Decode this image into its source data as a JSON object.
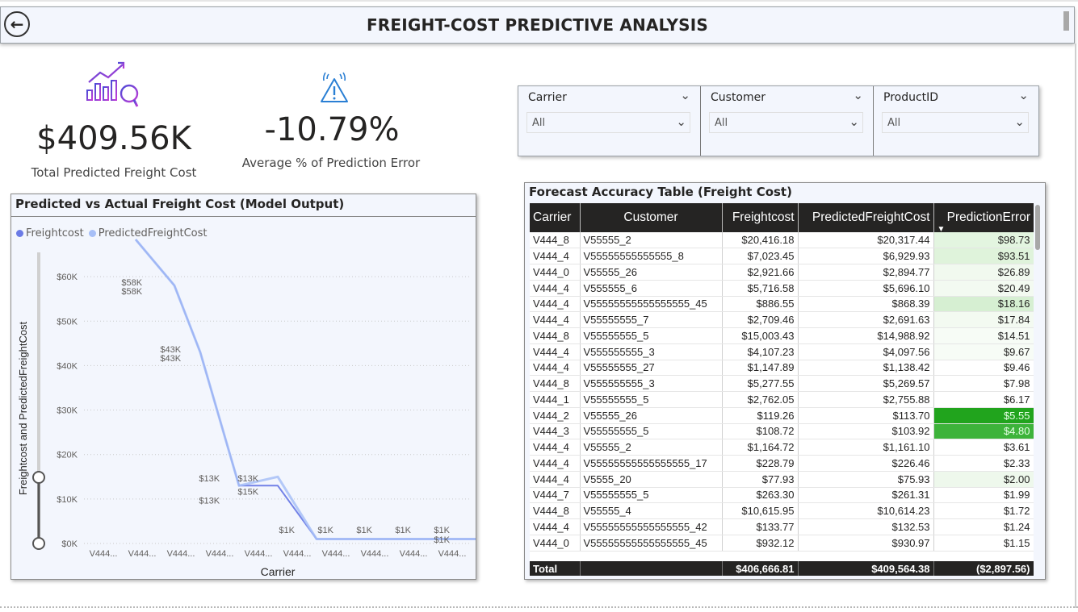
{
  "header": {
    "title": "FREIGHT-COST PREDICTIVE ANALYSIS",
    "back_icon": "arrow-left-circle-icon"
  },
  "kpis": [
    {
      "value": "$409.56K",
      "label": "Total Predicted Freight Cost",
      "icon": "analytics-growth-icon"
    },
    {
      "value": "-10.79%",
      "label": "Average % of Prediction Error",
      "icon": "warning-alert-icon"
    }
  ],
  "slicers": [
    {
      "title": "Carrier",
      "value": "All"
    },
    {
      "title": "Customer",
      "value": "All"
    },
    {
      "title": "ProductID",
      "value": "All"
    }
  ],
  "chart_data": {
    "type": "line",
    "title": "Predicted vs Actual Freight Cost (Model Output)",
    "xlabel": "Carrier",
    "ylabel": "Freightcost and PredictedFreightCost",
    "categories": [
      "V444...",
      "V444...",
      "V444...",
      "V444...",
      "V444...",
      "V444...",
      "V444...",
      "V444...",
      "V444...",
      "V444..."
    ],
    "y_ticks": [
      "$0K",
      "$10K",
      "$20K",
      "$30K",
      "$40K",
      "$50K",
      "$60K"
    ],
    "ylim": [
      0,
      68000
    ],
    "series": [
      {
        "name": "Freightcost",
        "color": "#6b7be6",
        "values": [
          58000,
          43000,
          13000,
          13000,
          1000,
          1000,
          1000,
          1000,
          1000,
          1000
        ]
      },
      {
        "name": "PredictedFreightCost",
        "color": "#a7bff7",
        "values": [
          58000,
          43000,
          13000,
          15000,
          1000,
          1000,
          1000,
          1000,
          1000,
          1000
        ]
      }
    ],
    "data_labels": [
      {
        "text": "$58K",
        "x": 1.4,
        "y": 58000
      },
      {
        "text": "$58K",
        "x": 1.4,
        "y": 56000
      },
      {
        "text": "$43K",
        "x": 2.4,
        "y": 43000
      },
      {
        "text": "$43K",
        "x": 2.4,
        "y": 41000
      },
      {
        "text": "$13K",
        "x": 3.4,
        "y": 14000
      },
      {
        "text": "$13K",
        "x": 3.4,
        "y": 9000
      },
      {
        "text": "$13K",
        "x": 4.4,
        "y": 14000
      },
      {
        "text": "$15K",
        "x": 4.4,
        "y": 11000
      },
      {
        "text": "$1K",
        "x": 5.4,
        "y": 2400
      },
      {
        "text": "$1K",
        "x": 6.4,
        "y": 2400
      },
      {
        "text": "$1K",
        "x": 7.4,
        "y": 2400
      },
      {
        "text": "$1K",
        "x": 8.4,
        "y": 2400
      },
      {
        "text": "$1K",
        "x": 9.4,
        "y": 2400
      },
      {
        "text": "$1K",
        "x": 9.4,
        "y": 200
      }
    ],
    "legend_position": "top-left",
    "grid": true
  },
  "table": {
    "title": "Forecast Accuracy Table (Freight Cost)",
    "columns": [
      "Carrier",
      "Customer",
      "Freightcost",
      "PredictedFreightCost",
      "PredictionError"
    ],
    "rows": [
      [
        "V444_8",
        "V55555_2",
        "$20,416.18",
        "$20,317.44",
        "$98.73"
      ],
      [
        "V444_4",
        "V55555555555555_8",
        "$7,023.45",
        "$6,929.93",
        "$93.51"
      ],
      [
        "V444_0",
        "V55555_26",
        "$2,921.66",
        "$2,894.77",
        "$26.89"
      ],
      [
        "V444_4",
        "V555555_6",
        "$5,716.58",
        "$5,696.10",
        "$20.49"
      ],
      [
        "V444_4",
        "V55555555555555555_45",
        "$886.55",
        "$868.39",
        "$18.16"
      ],
      [
        "V444_4",
        "V55555555_7",
        "$2,709.46",
        "$2,691.63",
        "$17.84"
      ],
      [
        "V444_8",
        "V55555555_5",
        "$15,003.43",
        "$14,988.92",
        "$14.51"
      ],
      [
        "V444_4",
        "V555555555_3",
        "$4,107.23",
        "$4,097.56",
        "$9.67"
      ],
      [
        "V444_4",
        "V55555555_27",
        "$1,147.89",
        "$1,138.42",
        "$9.46"
      ],
      [
        "V444_8",
        "V555555555_3",
        "$5,277.55",
        "$5,269.57",
        "$7.98"
      ],
      [
        "V444_1",
        "V55555555_5",
        "$2,762.05",
        "$2,755.88",
        "$6.17"
      ],
      [
        "V444_2",
        "V55555_26",
        "$119.26",
        "$113.70",
        "$5.55"
      ],
      [
        "V444_3",
        "V55555555_5",
        "$108.72",
        "$103.92",
        "$4.80"
      ],
      [
        "V444_4",
        "V55555_2",
        "$1,164.72",
        "$1,161.10",
        "$3.61"
      ],
      [
        "V444_4",
        "V55555555555555555_17",
        "$228.79",
        "$226.46",
        "$2.33"
      ],
      [
        "V444_4",
        "V5555_20",
        "$77.93",
        "$75.93",
        "$2.00"
      ],
      [
        "V444_7",
        "V55555555_5",
        "$263.30",
        "$261.31",
        "$1.99"
      ],
      [
        "V444_8",
        "V55555_4",
        "$10,615.95",
        "$10,614.23",
        "$1.72"
      ],
      [
        "V444_4",
        "V55555555555555555_42",
        "$133.77",
        "$132.53",
        "$1.24"
      ],
      [
        "V444_0",
        "V55555555555555555_45",
        "$932.12",
        "$930.97",
        "$1.15"
      ]
    ],
    "error_colors": [
      "#e3f5e0",
      "#dff3db",
      "#f1f9ef",
      "#f3faf1",
      "#d6efd2",
      "#f3faf1",
      "#f7fcf6",
      "#f7fcf6",
      "#ffffff",
      "#ffffff",
      "#ffffff",
      "#21a41d",
      "#3db33a",
      "#ffffff",
      "#ffffff",
      "#eef8ec",
      "#ffffff",
      "#ffffff",
      "#ffffff",
      "#ffffff"
    ],
    "total": [
      "Total",
      "",
      "$406,666.81",
      "$409,564.38",
      "($2,897.56)"
    ]
  }
}
